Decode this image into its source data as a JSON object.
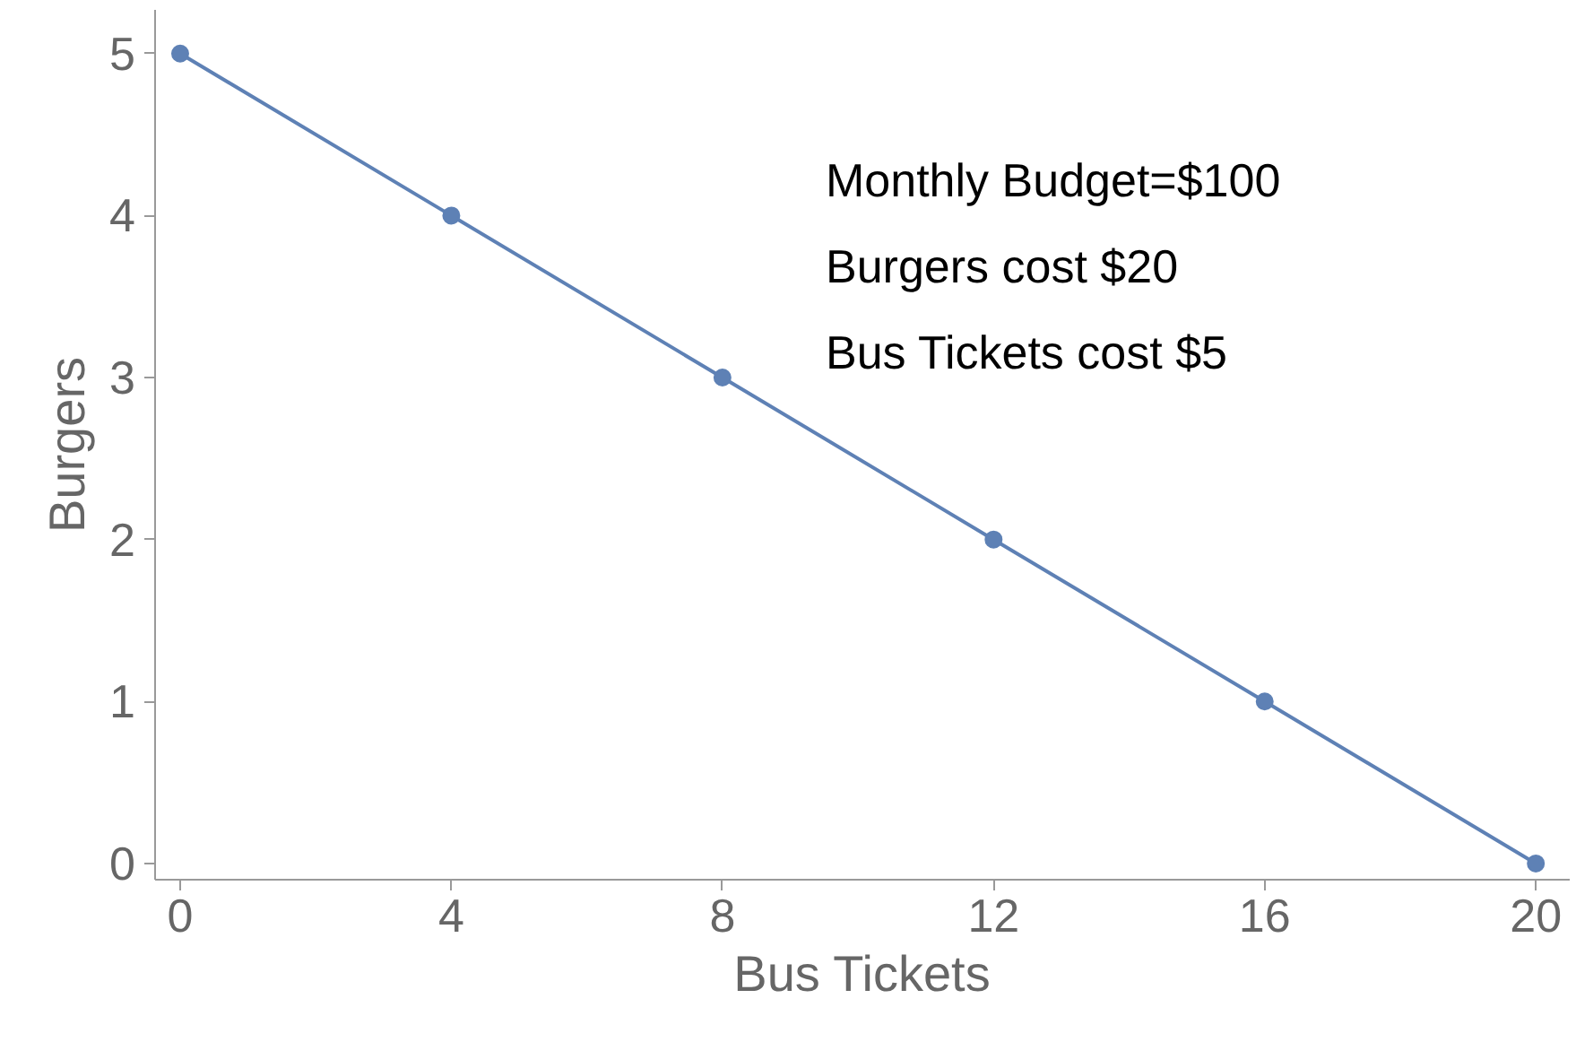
{
  "chart_data": {
    "type": "line",
    "xlabel": "Bus Tickets",
    "ylabel": "Burgers",
    "x": [
      0,
      4,
      8,
      12,
      16,
      20
    ],
    "series": [
      {
        "color": "#5e81b5",
        "values": [
          5,
          4,
          3,
          2,
          1,
          0
        ]
      }
    ],
    "xlim": [
      -0.37,
      20.5
    ],
    "ylim": [
      -0.1,
      5.27
    ],
    "xticks": [
      0,
      4,
      8,
      12,
      16,
      20
    ],
    "yticks": [
      0,
      1,
      2,
      3,
      4,
      5
    ],
    "marker": "circle",
    "line_style": "solid",
    "grid": false,
    "annotations": [
      "Monthly Budget=$100",
      "Burgers cost $20",
      "Bus Tickets cost $5"
    ]
  }
}
